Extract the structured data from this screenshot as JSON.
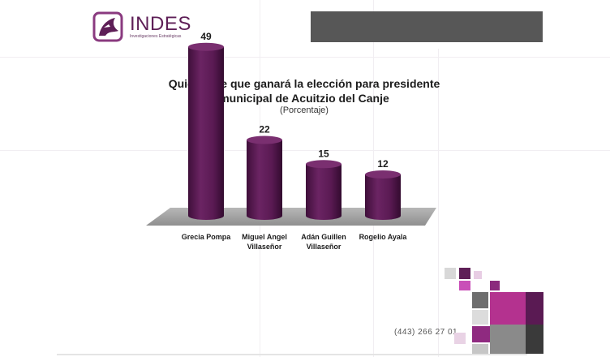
{
  "brand": {
    "name": "INDES",
    "tagline": "Investigaciones Estratégicas",
    "color": "#5e1f57"
  },
  "chart_data": {
    "type": "bar",
    "title_line1": "Quién cree que ganará la elección para presidente",
    "title_line2": "municipal de Acuitzio del Canje",
    "subtitle": "(Porcentaje)",
    "categories": [
      [
        "Grecia Pompa"
      ],
      [
        "Miguel Angel",
        "Villaseñor"
      ],
      [
        "Adán Guillen",
        "Villaseñor"
      ],
      [
        "Rogelio Ayala"
      ]
    ],
    "values": [
      49,
      22,
      15,
      12
    ],
    "data_labels": [
      "49",
      "22",
      "15",
      "12"
    ],
    "bar_color": "#5c1b55",
    "ylim": [
      0,
      50
    ],
    "grid": false,
    "legend": "none"
  },
  "footer": {
    "phone": "(443) 266 27 01"
  }
}
